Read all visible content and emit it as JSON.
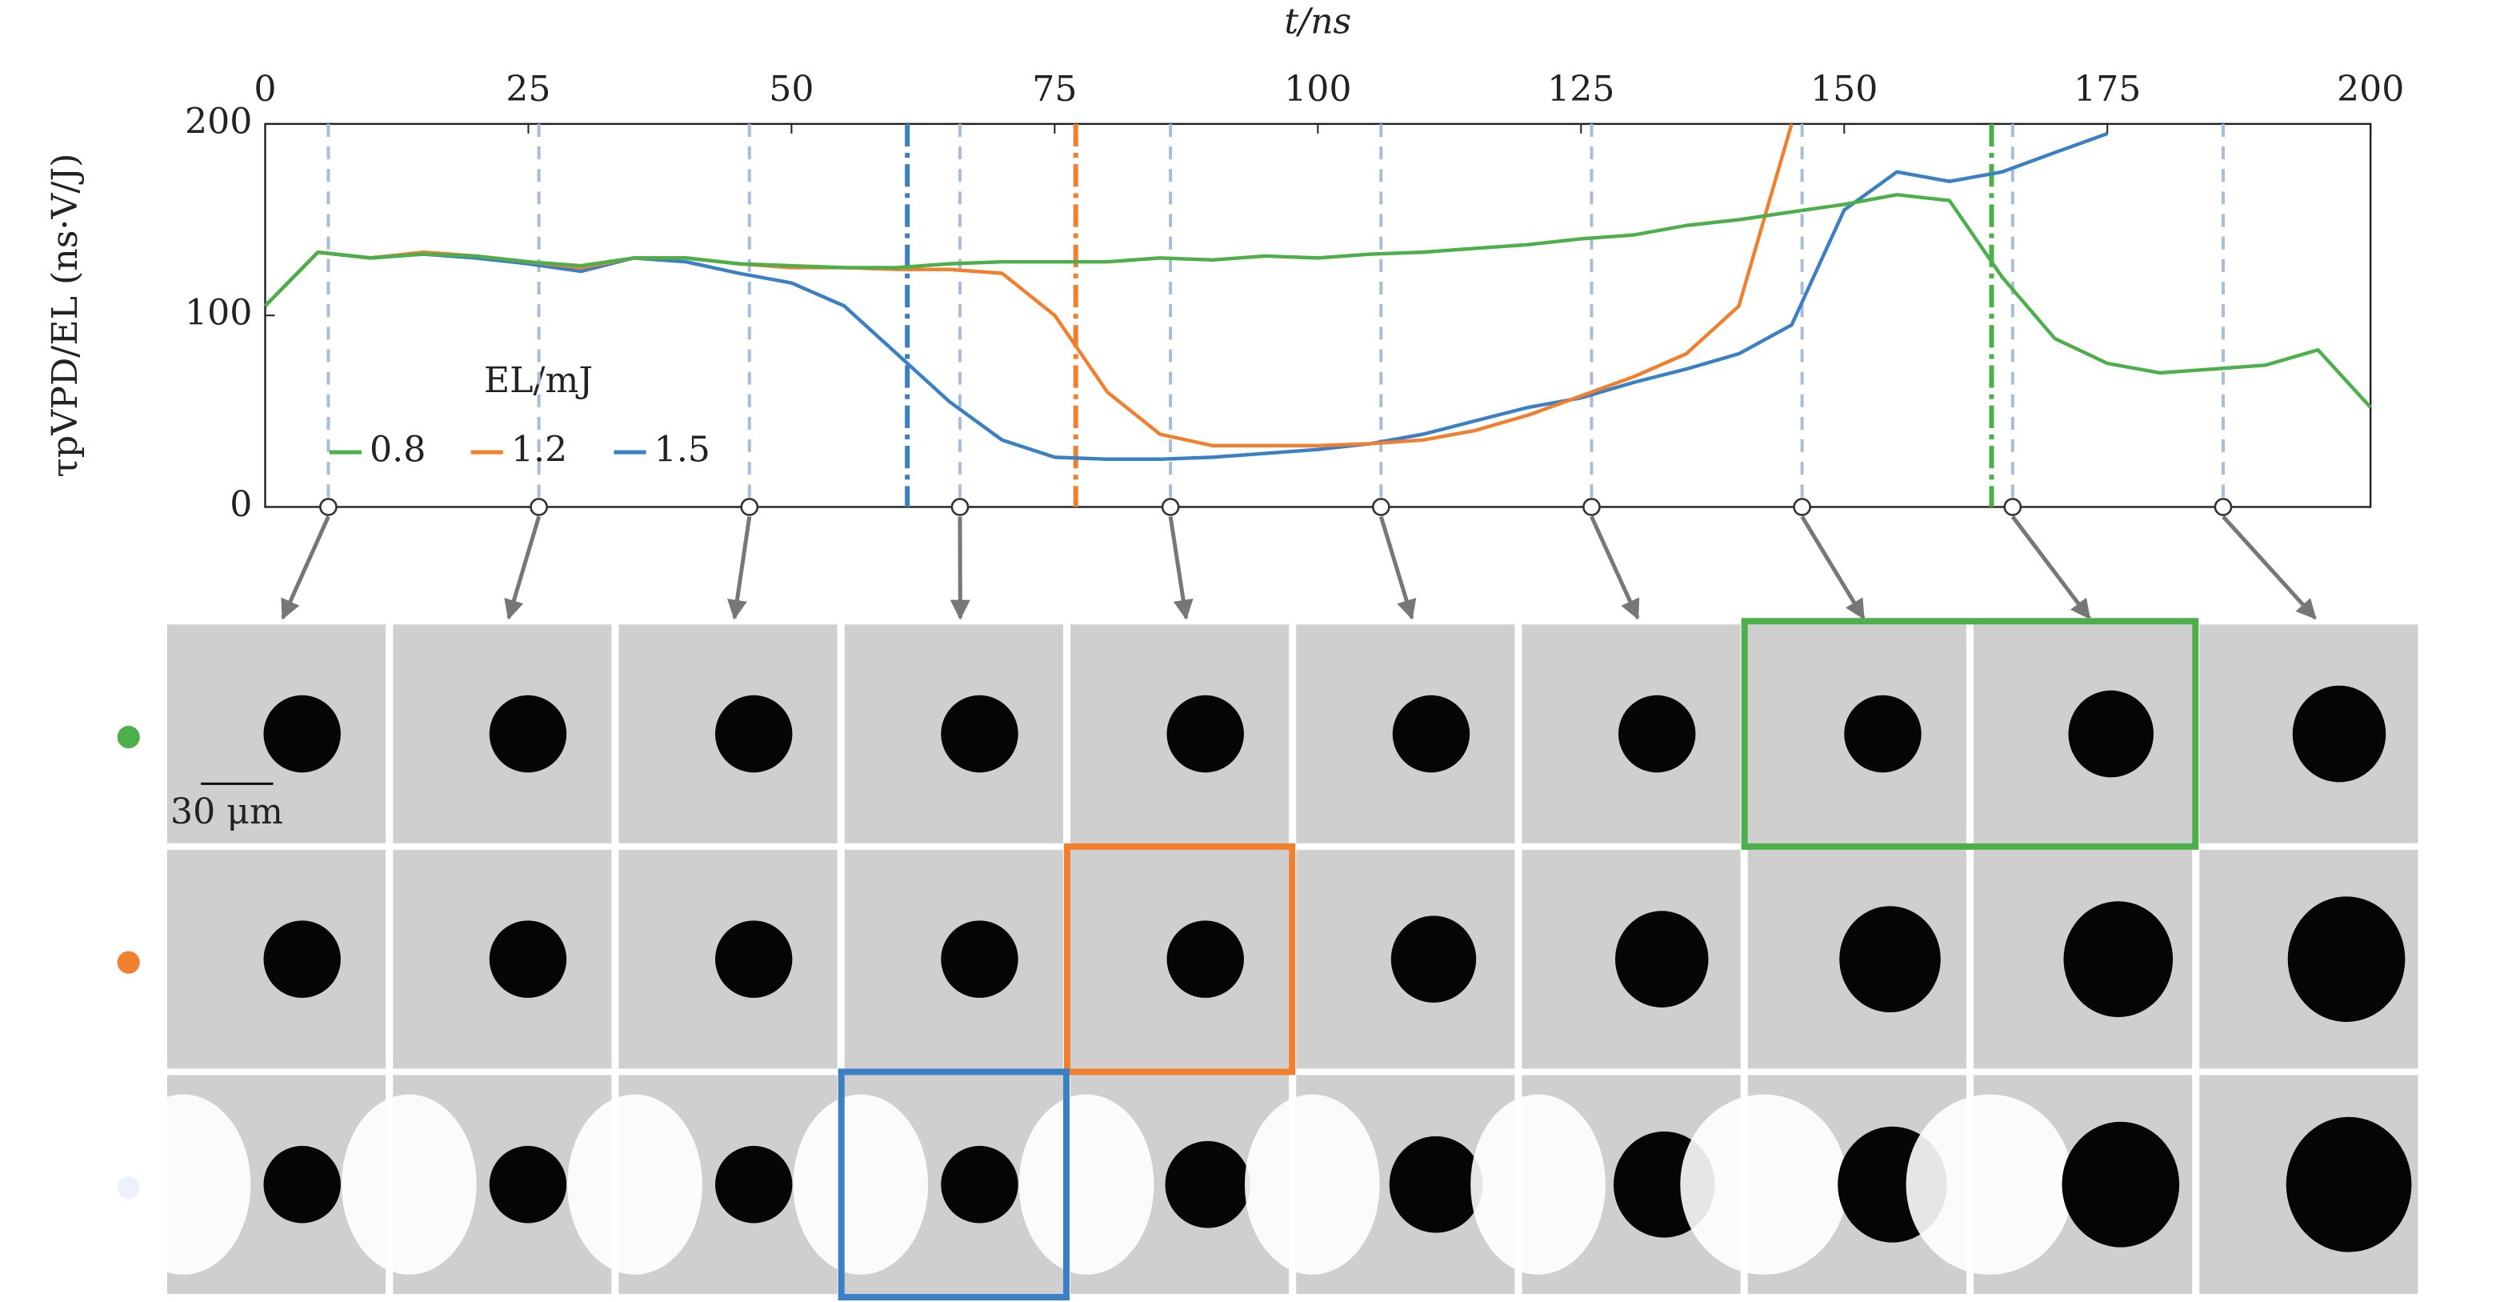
{
  "chart_data": {
    "type": "line",
    "x_label": "t/ns",
    "y_label": "τpVPD/EL (ns·V/J)",
    "legend_title": "EL/mJ",
    "xlim": [
      0,
      200
    ],
    "xticks": [
      0,
      25,
      50,
      75,
      100,
      125,
      150,
      175,
      200
    ],
    "ylim": [
      0,
      200
    ],
    "yticks": [
      0,
      100,
      200
    ],
    "x": [
      0,
      5,
      10,
      15,
      20,
      25,
      30,
      35,
      40,
      45,
      50,
      55,
      60,
      65,
      70,
      75,
      80,
      85,
      90,
      95,
      100,
      105,
      110,
      115,
      120,
      125,
      130,
      135,
      140,
      145,
      150,
      155,
      160,
      165,
      170,
      175,
      180,
      185,
      190,
      195,
      200
    ],
    "series": [
      {
        "name": "0.8",
        "color": "#4daf4a",
        "event": 164,
        "values": [
          105,
          133,
          130,
          132,
          131,
          128,
          126,
          130,
          130,
          127,
          126,
          125,
          125,
          127,
          128,
          128,
          128,
          130,
          129,
          131,
          130,
          132,
          133,
          135,
          137,
          140,
          142,
          147,
          150,
          154,
          158,
          163,
          160,
          120,
          88,
          75,
          70,
          72,
          74,
          82,
          52
        ]
      },
      {
        "name": "1.2",
        "color": "#f07f2e",
        "event": 77,
        "values": [
          105,
          133,
          130,
          133,
          131,
          128,
          125,
          130,
          130,
          127,
          125,
          125,
          124,
          124,
          122,
          100,
          60,
          38,
          32,
          32,
          32,
          33,
          35,
          40,
          48,
          58,
          68,
          80,
          105,
          200,
          null,
          null,
          null,
          null,
          null,
          null,
          null,
          null,
          null,
          null,
          null
        ]
      },
      {
        "name": "1.5",
        "color": "#3b7fc4",
        "event": 61,
        "values": [
          105,
          133,
          130,
          132,
          130,
          127,
          123,
          130,
          128,
          122,
          117,
          105,
          80,
          55,
          35,
          26,
          25,
          25,
          26,
          28,
          30,
          33,
          38,
          45,
          52,
          57,
          65,
          72,
          80,
          95,
          155,
          175,
          170,
          175,
          185,
          195,
          null,
          null,
          null,
          null,
          null
        ]
      }
    ],
    "frame_times": [
      6,
      26,
      46,
      66,
      86,
      106,
      126,
      146,
      166,
      186
    ]
  },
  "scale_bar": "30 μm"
}
